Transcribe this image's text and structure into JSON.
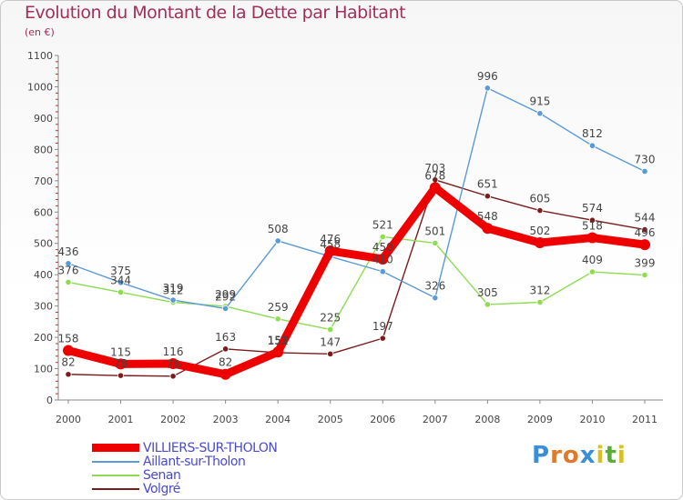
{
  "title": "Evolution du Montant de la Dette par Habitant",
  "unit": "(en €)",
  "brand": "Proxiti",
  "chart_data": {
    "type": "line",
    "x": [
      "2000",
      "2001",
      "2002",
      "2003",
      "2004",
      "2005",
      "2006",
      "2007",
      "2008",
      "2009",
      "2010",
      "2011"
    ],
    "ylim": [
      0,
      1100
    ],
    "yticks": [
      "0",
      "100",
      "200",
      "300",
      "400",
      "500",
      "600",
      "700",
      "800",
      "900",
      "1000",
      "1100"
    ],
    "grid": false,
    "legend_position": "bottom-left",
    "series": [
      {
        "name": "VILLIERS-SUR-THOLON",
        "color": "#ee0000",
        "values": [
          158,
          115,
          116,
          82,
          153,
          476,
          450,
          678,
          548,
          502,
          518,
          496
        ],
        "labels": [
          "158",
          "115",
          "116",
          "82",
          "153",
          "476",
          "450",
          "678",
          "548",
          "502",
          "518",
          "496"
        ]
      },
      {
        "name": "Aillant-sur-Tholon",
        "color": "#5a9ad6",
        "values": [
          436,
          375,
          319,
          292,
          508,
          458,
          410,
          326,
          996,
          915,
          812,
          730
        ],
        "labels": [
          "436",
          "375",
          "319",
          "292",
          "508",
          "458",
          "410",
          "326",
          "996",
          "915",
          "812",
          "730"
        ]
      },
      {
        "name": "Senan",
        "color": "#8edc52",
        "values": [
          376,
          344,
          312,
          299,
          259,
          225,
          521,
          501,
          305,
          312,
          409,
          399
        ],
        "labels": [
          "376",
          "344",
          "312",
          "299",
          "259",
          "225",
          "521",
          "501",
          "305",
          "312",
          "409",
          "399"
        ]
      },
      {
        "name": "Volgré",
        "color": "#7a1c1c",
        "values": [
          82,
          78,
          76,
          163,
          151,
          147,
          197,
          703,
          651,
          605,
          574,
          544
        ],
        "labels": [
          "82",
          "78",
          "76",
          "163",
          "151",
          "147",
          "197",
          "703",
          "651",
          "605",
          "574",
          "544"
        ]
      }
    ]
  }
}
